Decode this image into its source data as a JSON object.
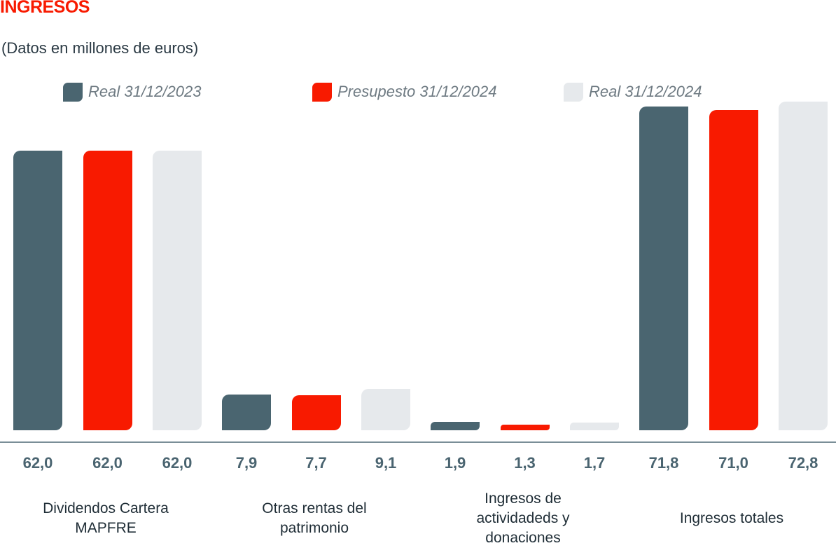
{
  "title": "INGRESOS",
  "subtitle": "(Datos en millones de euros)",
  "legend": [
    {
      "label": "Real 31/12/2023",
      "color": "#4a6570"
    },
    {
      "label": "Presupesto 31/12/2024",
      "color": "#f81a00"
    },
    {
      "label": "Real 31/12/2024",
      "color": "#e6e9ec"
    }
  ],
  "categories": [
    {
      "label": "Dividendos Cartera MAPFRE",
      "lines": [
        "Dividendos Cartera",
        "MAPFRE"
      ]
    },
    {
      "label": "Otras rentas del patrimonio",
      "lines": [
        "Otras rentas del",
        "patrimonio"
      ]
    },
    {
      "label": "Ingresos de actividadeds y donaciones",
      "lines": [
        "Ingresos de",
        "actividadeds y",
        "donaciones"
      ]
    },
    {
      "label": "Ingresos totales",
      "lines": [
        "Ingresos totales"
      ]
    }
  ],
  "value_labels": [
    "62,0",
    "62,0",
    "62,0",
    "7,9",
    "7,7",
    "9,1",
    "1,9",
    "1,3",
    "1,7",
    "71,8",
    "71,0",
    "72,8"
  ],
  "chart_data": {
    "type": "bar",
    "title": "INGRESOS",
    "subtitle": "(Datos en millones de euros)",
    "categories": [
      "Dividendos Cartera MAPFRE",
      "Otras rentas del patrimonio",
      "Ingresos de actividadeds y donaciones",
      "Ingresos totales"
    ],
    "series": [
      {
        "name": "Real 31/12/2023",
        "color": "#4a6570",
        "values": [
          62.0,
          7.9,
          1.9,
          71.8
        ]
      },
      {
        "name": "Presupesto 31/12/2024",
        "color": "#f81a00",
        "values": [
          62.0,
          7.7,
          1.3,
          71.0
        ]
      },
      {
        "name": "Real 31/12/2024",
        "color": "#e6e9ec",
        "values": [
          62.0,
          9.1,
          1.7,
          72.8
        ]
      }
    ],
    "xlabel": "",
    "ylabel": "",
    "ylim": [
      0,
      75
    ],
    "grid": false,
    "legend_position": "top",
    "data_labels": true
  }
}
